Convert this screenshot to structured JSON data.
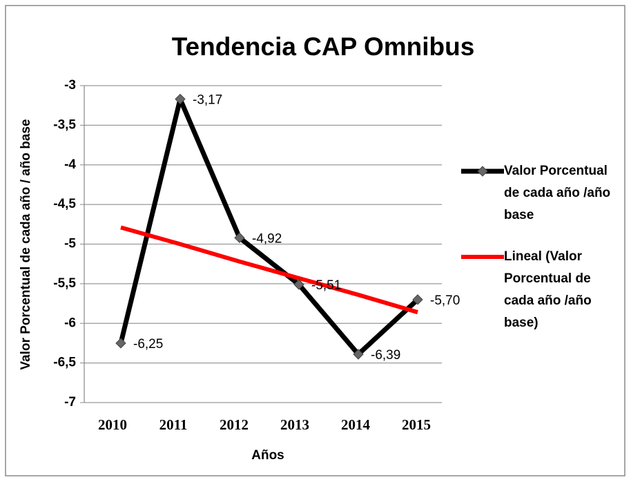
{
  "chart_data": {
    "type": "line",
    "title": "Tendencia CAP Omnibus",
    "x_label": "Años",
    "y_label": "Valor Porcentual de cada año / año base",
    "categories": [
      "2010",
      "2011",
      "2012",
      "2013",
      "2014",
      "2015"
    ],
    "series": [
      {
        "name": "Valor Porcentual de cada año /año base",
        "color": "#000000",
        "marker_color": "#666666",
        "values": [
          -6.25,
          -3.17,
          -4.92,
          -5.51,
          -6.39,
          -5.7
        ],
        "value_labels": [
          "-6,25",
          "-3,17",
          "-4,92",
          "-5,51",
          "-6,39",
          "-5,70"
        ]
      },
      {
        "name": "Lineal (Valor Porcentual de cada año /año base)",
        "color": "#ff0000",
        "values": [
          -4.79,
          -5.0,
          -5.22,
          -5.43,
          -5.64,
          -5.86
        ]
      }
    ],
    "ylim": [
      -7,
      -3
    ],
    "yticks": [
      -3,
      {
        "value": -3.5,
        "label": "-3,5"
      },
      -4,
      {
        "value": -4.5,
        "label": "-4,5"
      },
      -5,
      {
        "value": -5.5,
        "label": "-5,5"
      },
      -6,
      {
        "value": -6.5,
        "label": "-6,5"
      },
      -7
    ],
    "grid": true,
    "legend": "right"
  }
}
